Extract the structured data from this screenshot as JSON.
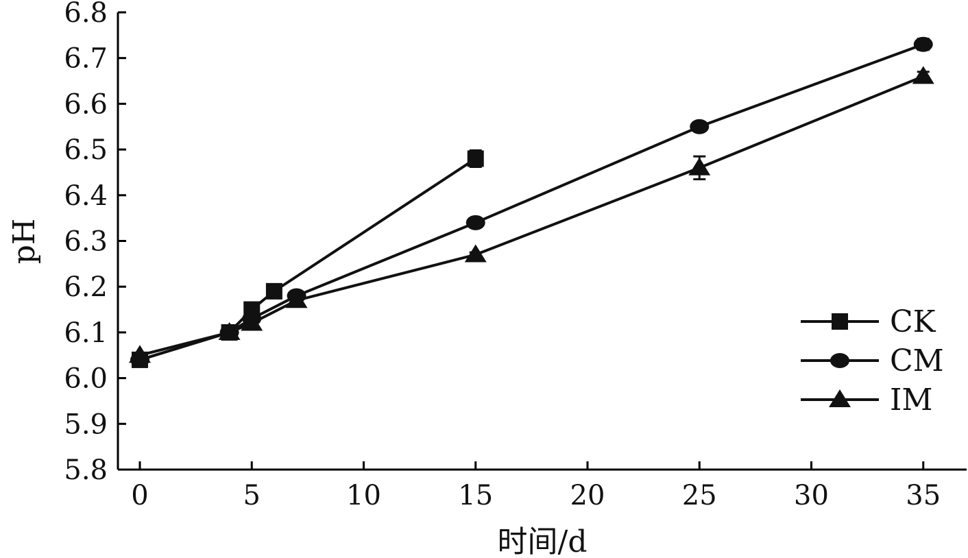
{
  "chart_data": {
    "type": "line",
    "title": "",
    "xlabel": "时间/d",
    "ylabel": "pH",
    "xlim": [
      -1,
      37
    ],
    "ylim": [
      5.8,
      6.8
    ],
    "xticks": [
      0,
      5,
      10,
      15,
      20,
      25,
      30,
      35
    ],
    "yticks": [
      5.8,
      5.9,
      6.0,
      6.1,
      6.2,
      6.3,
      6.4,
      6.5,
      6.6,
      6.7,
      6.8
    ],
    "xtick_labels": [
      "0",
      "5",
      "10",
      "15",
      "20",
      "25",
      "30",
      "35"
    ],
    "ytick_labels": [
      "5.8",
      "5.9",
      "6.0",
      "6.1",
      "6.2",
      "6.3",
      "6.4",
      "6.5",
      "6.6",
      "6.7",
      "6.8"
    ],
    "grid": false,
    "legend_position": "bottom-right",
    "series": [
      {
        "name": "CK",
        "marker": "square",
        "x": [
          0,
          4,
          5,
          6,
          15
        ],
        "y": [
          6.04,
          6.1,
          6.15,
          6.19,
          6.48
        ],
        "err": [
          0.005,
          0.005,
          0.005,
          0.005,
          0.018
        ]
      },
      {
        "name": "CM",
        "marker": "circle",
        "x": [
          0,
          4,
          5,
          7,
          15,
          25,
          35
        ],
        "y": [
          6.04,
          6.1,
          6.13,
          6.18,
          6.34,
          6.55,
          6.73
        ],
        "err": [
          0.005,
          0.005,
          0.005,
          0.005,
          0.005,
          0.01,
          0.012
        ]
      },
      {
        "name": "IM",
        "marker": "triangle",
        "x": [
          0,
          4,
          5,
          7,
          15,
          25,
          35
        ],
        "y": [
          6.05,
          6.1,
          6.12,
          6.17,
          6.27,
          6.46,
          6.66
        ],
        "err": [
          0.005,
          0.005,
          0.005,
          0.005,
          0.005,
          0.025,
          0.01
        ]
      }
    ]
  }
}
